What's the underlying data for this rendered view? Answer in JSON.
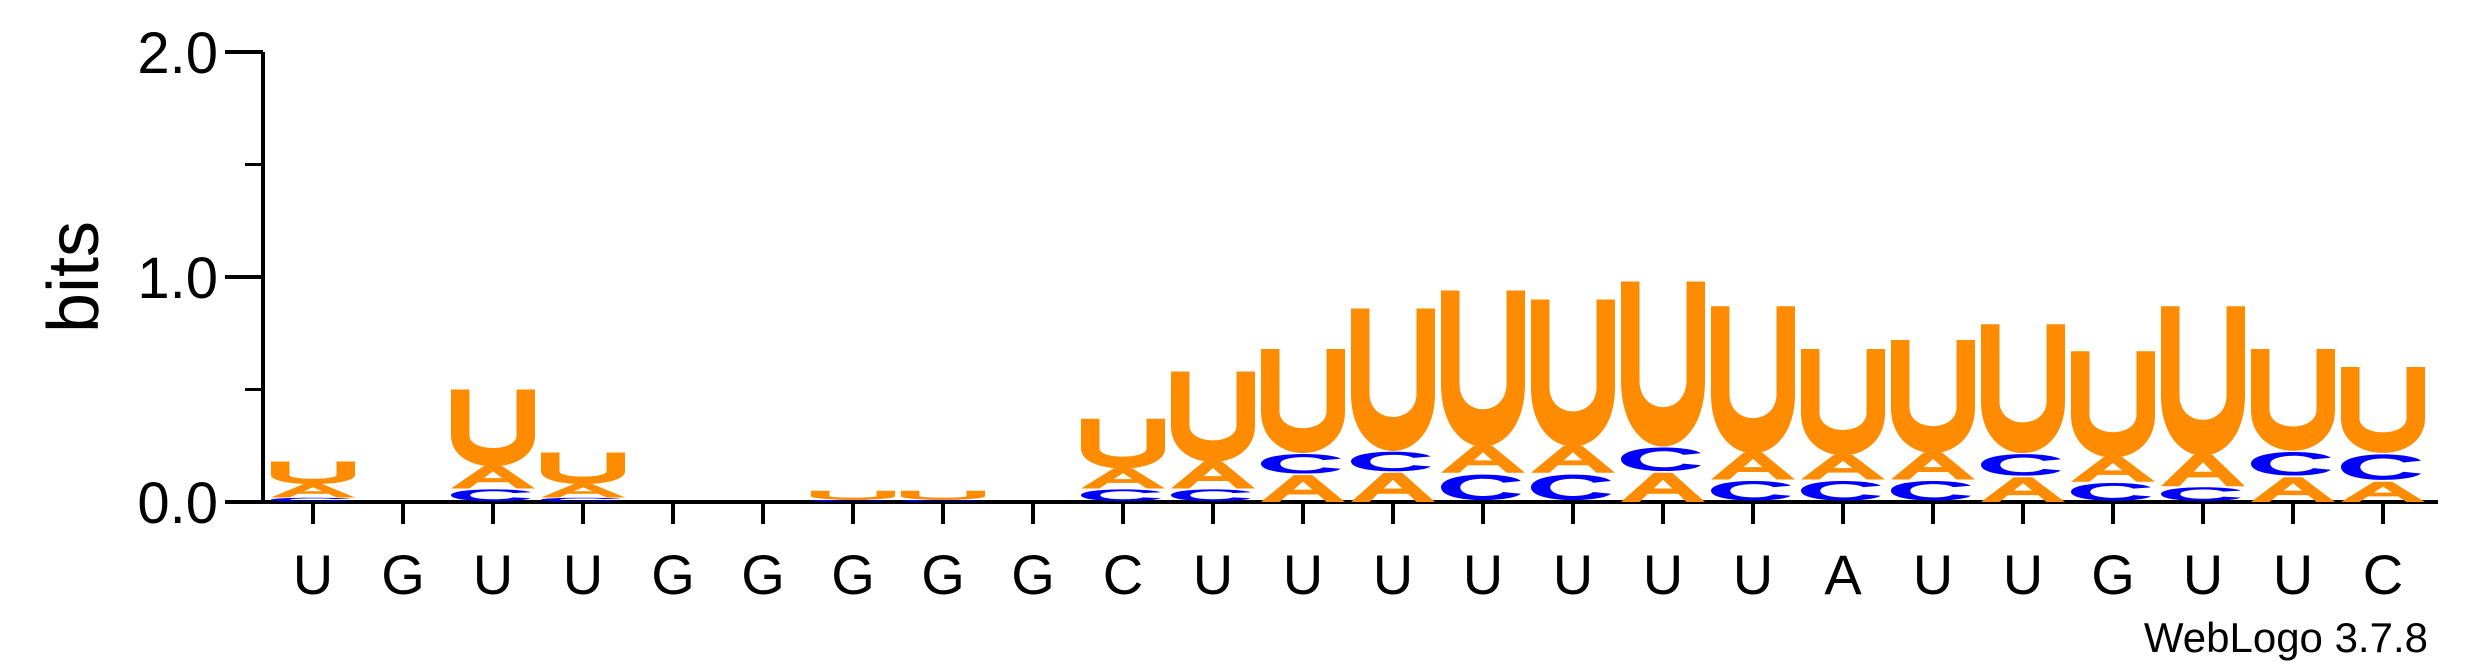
{
  "chart_data": {
    "type": "sequence-logo",
    "ylabel": "bits",
    "ylim": [
      0,
      2
    ],
    "yticks": [
      "0.0",
      "1.0",
      "2.0"
    ],
    "colors": {
      "U": "#ff8c00",
      "A": "#ff8c00",
      "C": "#0000ff",
      "G": "#ff8c00"
    },
    "positions": [
      {
        "label": "U",
        "stack": [
          [
            "C",
            0.02
          ],
          [
            "A",
            0.06
          ],
          [
            "U",
            0.1
          ]
        ]
      },
      {
        "label": "G",
        "stack": []
      },
      {
        "label": "U",
        "stack": [
          [
            "C",
            0.06
          ],
          [
            "A",
            0.1
          ],
          [
            "U",
            0.34
          ]
        ]
      },
      {
        "label": "U",
        "stack": [
          [
            "C",
            0.02
          ],
          [
            "A",
            0.06
          ],
          [
            "U",
            0.14
          ]
        ]
      },
      {
        "label": "G",
        "stack": []
      },
      {
        "label": "G",
        "stack": []
      },
      {
        "label": "G",
        "stack": [
          [
            "C",
            0.01
          ],
          [
            "U",
            0.04
          ]
        ]
      },
      {
        "label": "G",
        "stack": [
          [
            "C",
            0.01
          ],
          [
            "U",
            0.04
          ]
        ]
      },
      {
        "label": "G",
        "stack": []
      },
      {
        "label": "C",
        "stack": [
          [
            "C",
            0.06
          ],
          [
            "A",
            0.09
          ],
          [
            "U",
            0.22
          ]
        ]
      },
      {
        "label": "U",
        "stack": [
          [
            "C",
            0.06
          ],
          [
            "A",
            0.12
          ],
          [
            "U",
            0.4
          ]
        ]
      },
      {
        "label": "U",
        "stack": [
          [
            "A",
            0.12
          ],
          [
            "C",
            0.1
          ],
          [
            "U",
            0.46
          ]
        ]
      },
      {
        "label": "U",
        "stack": [
          [
            "A",
            0.13
          ],
          [
            "C",
            0.1
          ],
          [
            "U",
            0.63
          ]
        ]
      },
      {
        "label": "U",
        "stack": [
          [
            "C",
            0.13
          ],
          [
            "A",
            0.12
          ],
          [
            "U",
            0.69
          ]
        ]
      },
      {
        "label": "U",
        "stack": [
          [
            "C",
            0.13
          ],
          [
            "A",
            0.12
          ],
          [
            "U",
            0.65
          ]
        ]
      },
      {
        "label": "U",
        "stack": [
          [
            "A",
            0.13
          ],
          [
            "C",
            0.12
          ],
          [
            "U",
            0.73
          ]
        ]
      },
      {
        "label": "U",
        "stack": [
          [
            "C",
            0.1
          ],
          [
            "A",
            0.12
          ],
          [
            "U",
            0.65
          ]
        ]
      },
      {
        "label": "A",
        "stack": [
          [
            "C",
            0.1
          ],
          [
            "A",
            0.11
          ],
          [
            "U",
            0.47
          ]
        ]
      },
      {
        "label": "U",
        "stack": [
          [
            "C",
            0.1
          ],
          [
            "A",
            0.12
          ],
          [
            "U",
            0.5
          ]
        ]
      },
      {
        "label": "U",
        "stack": [
          [
            "A",
            0.11
          ],
          [
            "C",
            0.11
          ],
          [
            "U",
            0.57
          ]
        ]
      },
      {
        "label": "G",
        "stack": [
          [
            "C",
            0.09
          ],
          [
            "A",
            0.11
          ],
          [
            "U",
            0.47
          ]
        ]
      },
      {
        "label": "U",
        "stack": [
          [
            "C",
            0.07
          ],
          [
            "A",
            0.14
          ],
          [
            "U",
            0.66
          ]
        ]
      },
      {
        "label": "U",
        "stack": [
          [
            "A",
            0.11
          ],
          [
            "C",
            0.12
          ],
          [
            "U",
            0.45
          ]
        ]
      },
      {
        "label": "C",
        "stack": [
          [
            "A",
            0.09
          ],
          [
            "C",
            0.13
          ],
          [
            "U",
            0.38
          ]
        ]
      }
    ]
  },
  "credit": "WebLogo 3.7.8"
}
